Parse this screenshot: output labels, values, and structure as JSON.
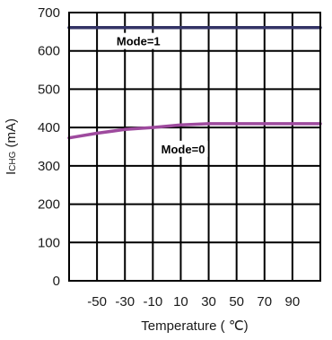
{
  "chart_data": {
    "type": "line",
    "title": "",
    "xlabel": "Temperature ( ℃)",
    "ylabel_main": "I",
    "ylabel_sub": "CHG",
    "ylabel_unit": " (mA)",
    "xlim": [
      -70,
      110
    ],
    "ylim": [
      0,
      700
    ],
    "x_ticks": [
      -50,
      -30,
      -10,
      10,
      30,
      50,
      70,
      90
    ],
    "x_tick_labels": [
      "-50",
      "-30",
      "-10",
      "10",
      "30",
      "50",
      "70",
      "90"
    ],
    "y_ticks": [
      0,
      100,
      200,
      300,
      400,
      500,
      600,
      700
    ],
    "y_tick_labels": [
      "0",
      "100",
      "200",
      "300",
      "400",
      "500",
      "600",
      "700"
    ],
    "grid": true,
    "series": [
      {
        "name": "Mode=1",
        "color": "#333366",
        "x": [
          -70,
          -50,
          -30,
          -10,
          10,
          30,
          50,
          70,
          90,
          110
        ],
        "y": [
          661,
          661,
          661,
          661,
          661,
          661,
          661,
          661,
          661,
          661
        ]
      },
      {
        "name": "Mode=0",
        "color": "#9e4a9e",
        "x": [
          -70,
          -50,
          -30,
          -10,
          10,
          30,
          50,
          70,
          90,
          110
        ],
        "y": [
          373,
          385,
          395,
          400,
          407,
          410,
          410,
          410,
          410,
          410
        ]
      }
    ]
  }
}
